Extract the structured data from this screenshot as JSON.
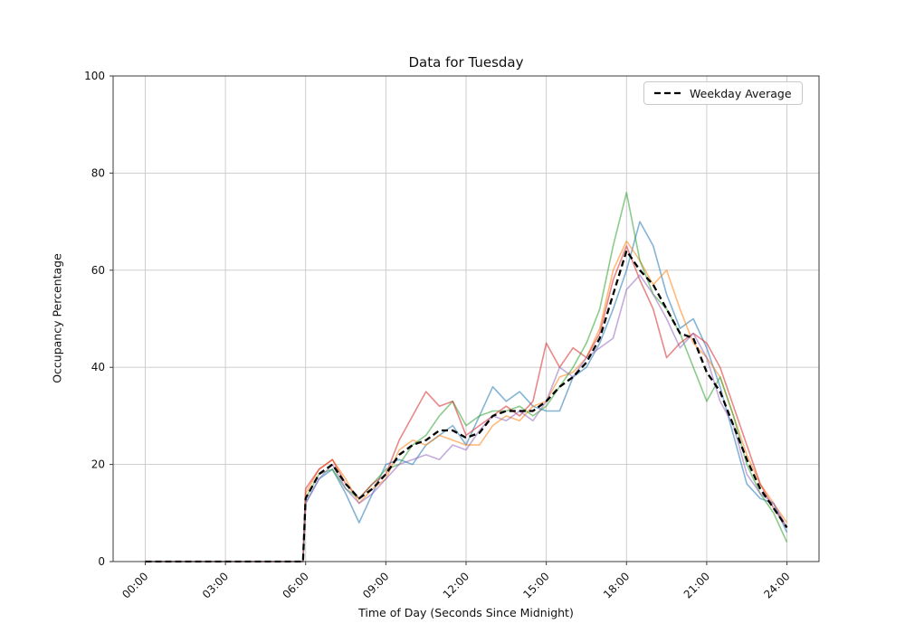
{
  "chart_data": {
    "type": "line",
    "title": "Data for Tuesday",
    "xlabel": "Time of Day (Seconds Since Midnight)",
    "ylabel": "Occupancy Percentage",
    "xlim_hours": [
      -1.2,
      25.2
    ],
    "ylim": [
      0,
      100
    ],
    "grid": true,
    "x_tick_hours": [
      0,
      3,
      6,
      9,
      12,
      15,
      18,
      21,
      24
    ],
    "x_tick_labels": [
      "00:00",
      "03:00",
      "06:00",
      "09:00",
      "12:00",
      "15:00",
      "18:00",
      "21:00",
      "24:00"
    ],
    "y_ticks": [
      0,
      20,
      40,
      60,
      80,
      100
    ],
    "x_hours": [
      0,
      0.5,
      1,
      1.5,
      2,
      2.5,
      3,
      3.5,
      4,
      4.5,
      5,
      5.5,
      5.9,
      6,
      6.5,
      7,
      7.5,
      8,
      8.5,
      9,
      9.5,
      10,
      10.5,
      11,
      11.5,
      12,
      12.5,
      13,
      13.5,
      14,
      14.5,
      15,
      15.5,
      16,
      16.5,
      17,
      17.5,
      18,
      18.5,
      19,
      19.5,
      20,
      20.5,
      21,
      21.5,
      22,
      22.5,
      23,
      23.5,
      24
    ],
    "series": [
      {
        "id": "day-line-1",
        "color": "#1f77b4",
        "opacity": 0.55,
        "values": [
          0,
          0,
          0,
          0,
          0,
          0,
          0,
          0,
          0,
          0,
          0,
          0,
          0,
          12,
          17,
          19,
          14,
          8,
          14,
          20,
          21,
          20,
          24,
          26,
          28,
          24,
          30,
          36,
          33,
          35,
          32,
          31,
          31,
          38,
          40,
          45,
          52,
          60,
          70,
          65,
          55,
          48,
          50,
          44,
          36,
          26,
          16,
          13,
          12,
          6
        ]
      },
      {
        "id": "day-line-2",
        "color": "#ff7f0e",
        "opacity": 0.55,
        "values": [
          0,
          0,
          0,
          0,
          0,
          0,
          0,
          0,
          0,
          0,
          0,
          0,
          0,
          14,
          19,
          21,
          17,
          12,
          15,
          17,
          23,
          25,
          24,
          26,
          25,
          24,
          24,
          28,
          30,
          29,
          32,
          33,
          38,
          39,
          42,
          48,
          60,
          66,
          62,
          57,
          60,
          52,
          45,
          42,
          38,
          30,
          22,
          16,
          12,
          8
        ]
      },
      {
        "id": "day-line-3",
        "color": "#2ca02c",
        "opacity": 0.55,
        "values": [
          0,
          0,
          0,
          0,
          0,
          0,
          0,
          0,
          0,
          0,
          0,
          0,
          0,
          13,
          18,
          19,
          15,
          13,
          16,
          19,
          20,
          24,
          26,
          30,
          33,
          28,
          30,
          31,
          31,
          32,
          30,
          32,
          36,
          40,
          45,
          52,
          65,
          76,
          62,
          55,
          52,
          47,
          40,
          33,
          38,
          30,
          20,
          14,
          10,
          4
        ]
      },
      {
        "id": "day-line-4",
        "color": "#d62728",
        "opacity": 0.55,
        "values": [
          0,
          0,
          0,
          0,
          0,
          0,
          0,
          0,
          0,
          0,
          0,
          0,
          0,
          15,
          19,
          21,
          16,
          13,
          16,
          18,
          25,
          30,
          35,
          32,
          33,
          26,
          28,
          30,
          32,
          30,
          33,
          45,
          40,
          44,
          42,
          47,
          58,
          65,
          58,
          52,
          42,
          45,
          47,
          45,
          40,
          32,
          24,
          16,
          11,
          7
        ]
      },
      {
        "id": "day-line-5",
        "color": "#9467bd",
        "opacity": 0.55,
        "values": [
          0,
          0,
          0,
          0,
          0,
          0,
          0,
          0,
          0,
          0,
          0,
          0,
          0,
          12,
          17,
          20,
          15,
          12,
          14,
          17,
          20,
          21,
          22,
          21,
          24,
          23,
          27,
          30,
          29,
          31,
          29,
          33,
          40,
          38,
          42,
          44,
          46,
          56,
          59,
          55,
          50,
          44,
          47,
          42,
          33,
          28,
          18,
          14,
          12,
          7
        ]
      }
    ],
    "average": {
      "label": "Weekday Average",
      "color": "#000000",
      "dash": [
        7,
        4
      ],
      "values": [
        0,
        0,
        0,
        0,
        0,
        0,
        0,
        0,
        0,
        0,
        0,
        0,
        0,
        13,
        18,
        20,
        16,
        13,
        15,
        18,
        22,
        24,
        25,
        27,
        27,
        25.5,
        26.5,
        30,
        31,
        31,
        31,
        33,
        36,
        38,
        41,
        46,
        55,
        64,
        60,
        57,
        52,
        47,
        46,
        39,
        35,
        28,
        21,
        15,
        11,
        7
      ]
    },
    "legend": {
      "label": "Weekday Average",
      "position": "upper right"
    }
  }
}
